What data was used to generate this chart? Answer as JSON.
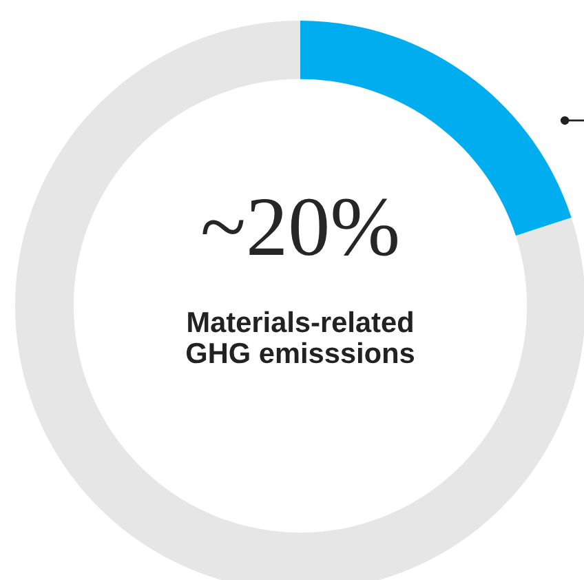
{
  "chart_data": {
    "type": "donut",
    "categories": [
      null,
      null
    ],
    "values": [
      20,
      80
    ],
    "colors": [
      "#00aeef",
      "#e6e6e6"
    ],
    "annotations": [
      "~20%",
      "Materials-related\nGHG emisssions"
    ]
  }
}
